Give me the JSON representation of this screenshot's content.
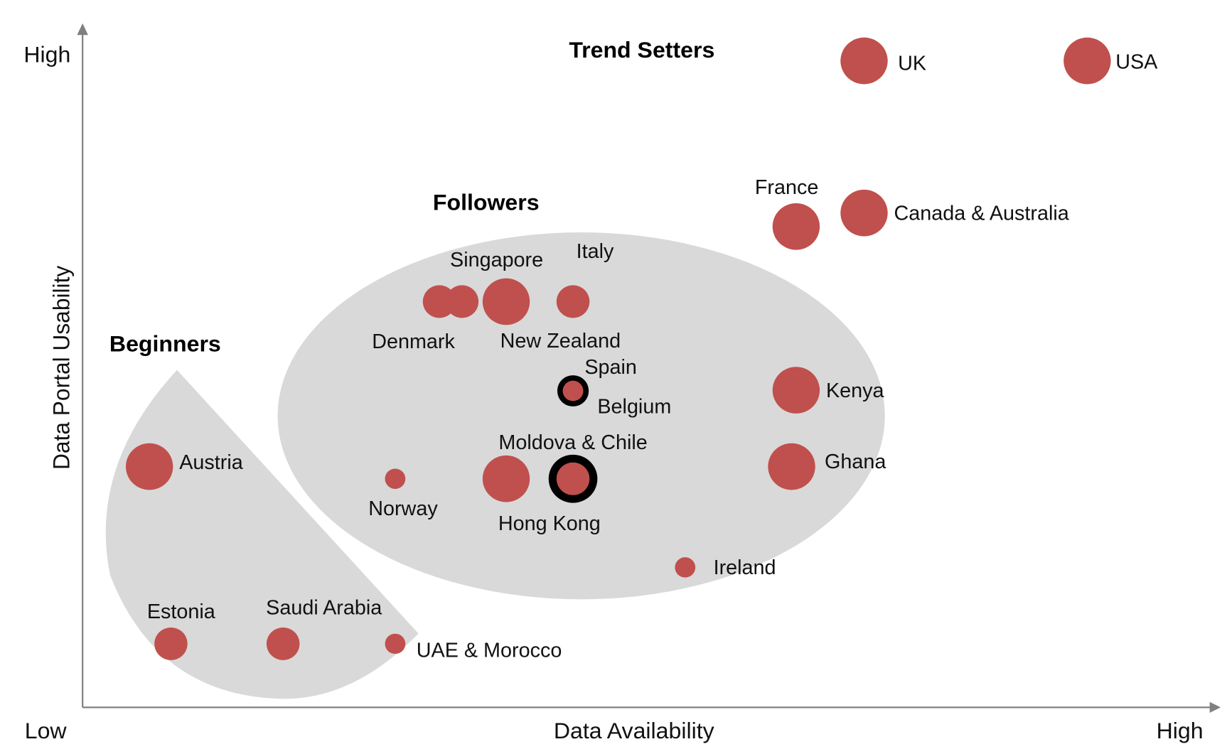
{
  "chart_data": {
    "type": "scatter",
    "xlabel": "Data Availability",
    "ylabel": "Data Portal Usability",
    "x_ticks": {
      "low": "Low",
      "high": "High"
    },
    "y_ticks": {
      "low": "",
      "high": "High"
    },
    "xlim": [
      0,
      10
    ],
    "ylim": [
      0,
      10
    ],
    "grid": false,
    "point_color": "#c0504d",
    "ring_color": "#000000",
    "region_color": "#d9d9d9",
    "groups": [
      {
        "name": "Trend Setters"
      },
      {
        "name": "Followers"
      },
      {
        "name": "Beginners"
      }
    ],
    "points": [
      {
        "name": "UK",
        "x": 6.9,
        "y": 9.56,
        "size": 3
      },
      {
        "name": "USA",
        "x": 8.87,
        "y": 9.56,
        "size": 3
      },
      {
        "name": "France",
        "x": 6.3,
        "y": 7.11,
        "size": 3
      },
      {
        "name": "Canada & Australia",
        "x": 6.9,
        "y": 7.31,
        "size": 3
      },
      {
        "name": "Denmark",
        "x": 3.15,
        "y": 6.0,
        "size": 2
      },
      {
        "name": "Singapore",
        "x": 3.35,
        "y": 6.0,
        "size": 2
      },
      {
        "name": "New Zealand",
        "x": 3.74,
        "y": 6.0,
        "size": 3
      },
      {
        "name": "Italy",
        "x": 4.33,
        "y": 6.0,
        "size": 2
      },
      {
        "name": "Spain",
        "x": 4.33,
        "y": 4.68,
        "size": 1,
        "ring": true
      },
      {
        "name": "Belgium",
        "x": 4.33,
        "y": 4.68,
        "size": 1
      },
      {
        "name": "Kenya",
        "x": 6.3,
        "y": 4.69,
        "size": 3
      },
      {
        "name": "Ghana",
        "x": 6.26,
        "y": 3.56,
        "size": 3
      },
      {
        "name": "Austria",
        "x": 0.59,
        "y": 3.56,
        "size": 3
      },
      {
        "name": "Norway",
        "x": 2.76,
        "y": 3.38,
        "size": 1
      },
      {
        "name": "Moldova & Chile",
        "x": 3.74,
        "y": 3.38,
        "size": 3
      },
      {
        "name": "Hong Kong",
        "x": 4.33,
        "y": 3.38,
        "size": 2,
        "ring": true
      },
      {
        "name": "Ireland",
        "x": 5.32,
        "y": 2.07,
        "size": 1
      },
      {
        "name": "Estonia",
        "x": 0.78,
        "y": 0.94,
        "size": 2
      },
      {
        "name": "Saudi Arabia",
        "x": 1.77,
        "y": 0.94,
        "size": 2
      },
      {
        "name": "UAE & Morocco",
        "x": 2.76,
        "y": 0.94,
        "size": 1
      }
    ]
  }
}
